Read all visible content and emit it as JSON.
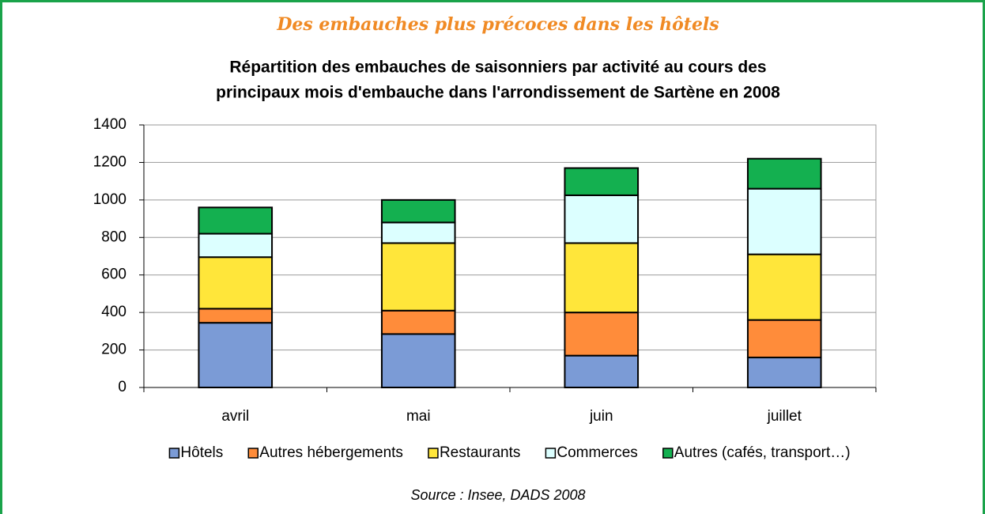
{
  "heading": "Des embauches plus précoces dans les hôtels",
  "source": "Source : Insee, DADS 2008",
  "chart_data": {
    "type": "stacked-bar",
    "title": [
      "Répartition des embauches de saisonniers par activité au cours des",
      "principaux mois d'embauche dans l'arrondissement de Sartène en 2008"
    ],
    "categories": [
      "avril",
      "mai",
      "juin",
      "juillet"
    ],
    "series": [
      {
        "name": "Hôtels",
        "color": "#7b9bd6",
        "values": [
          345,
          285,
          170,
          160
        ]
      },
      {
        "name": "Autres hébergements",
        "color": "#ff8c3a",
        "values": [
          75,
          125,
          230,
          200
        ]
      },
      {
        "name": "Restaurants",
        "color": "#ffe63a",
        "values": [
          275,
          360,
          370,
          350
        ]
      },
      {
        "name": "Commerces",
        "color": "#dcffff",
        "values": [
          125,
          110,
          255,
          350
        ]
      },
      {
        "name": "Autres (cafés, transport…)",
        "color": "#14b050",
        "values": [
          140,
          120,
          145,
          160
        ]
      }
    ],
    "ylim": [
      0,
      1400
    ],
    "yticks": [
      0,
      200,
      400,
      600,
      800,
      1000,
      1200,
      1400
    ],
    "grid": true,
    "legend": "bottom"
  }
}
